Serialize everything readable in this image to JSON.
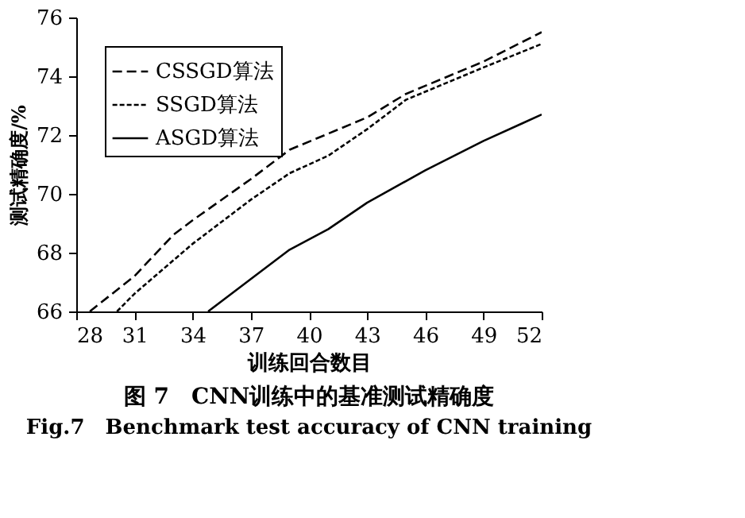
{
  "chart_data": {
    "type": "line",
    "title": "图 7　CNN训练中的基准测试精确度",
    "subtitle": "Fig.7　Benchmark test accuracy of CNN training",
    "xlabel": "训练回合数目",
    "ylabel": "测试精确度/%",
    "xlim": [
      28,
      52
    ],
    "xticks": [
      28,
      31,
      34,
      37,
      40,
      43,
      46,
      49,
      52
    ],
    "ylim": [
      66,
      76
    ],
    "yticks": [
      66,
      68,
      70,
      72,
      74,
      76
    ],
    "grid": false,
    "legend": "top left",
    "marker": "none",
    "series": [
      {
        "name": "CSSGD算法",
        "color": "#000000",
        "line_style": "dashed",
        "x": [
          28.7,
          31,
          33,
          34,
          37,
          39,
          43,
          45,
          49,
          52
        ],
        "values": [
          66,
          67.2,
          68.6,
          69.1,
          70.5,
          71.5,
          72.6,
          73.4,
          74.5,
          75.5
        ]
      },
      {
        "name": "SSGD算法",
        "color": "#000000",
        "line_style": "dotted",
        "x": [
          30.1,
          31,
          34,
          37,
          39,
          41,
          43,
          45,
          49,
          52
        ],
        "values": [
          66,
          66.6,
          68.3,
          69.8,
          70.7,
          71.3,
          72.2,
          73.2,
          74.3,
          75.1
        ]
      },
      {
        "name": "ASGD算法",
        "color": "#000000",
        "line_style": "solid",
        "x": [
          34.8,
          37,
          39,
          41,
          43,
          46,
          49,
          51,
          52
        ],
        "values": [
          66,
          67.1,
          68.1,
          68.8,
          69.7,
          70.8,
          71.8,
          72.4,
          72.7
        ]
      }
    ]
  }
}
